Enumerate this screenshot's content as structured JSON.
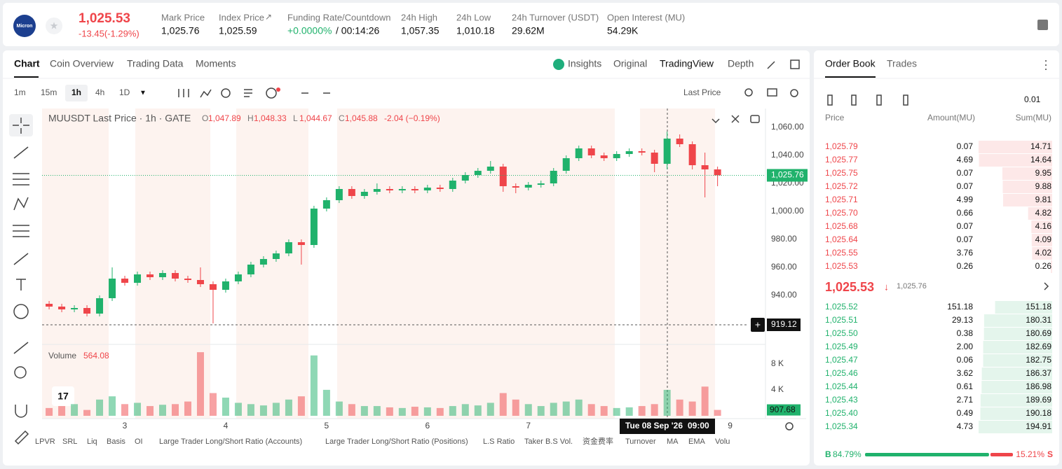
{
  "header": {
    "logo": "Micron",
    "price": "1,025.53",
    "change": "-13.45(-1.29%)",
    "stats": [
      {
        "label": "Mark Price",
        "value": "1,025.76"
      },
      {
        "label": "Index Price",
        "value": "1,025.59"
      },
      {
        "label": "Funding Rate/Countdown",
        "value": "+0.0000%",
        "extra": "/ 00:14:26"
      },
      {
        "label": "24h High",
        "value": "1,057.35"
      },
      {
        "label": "24h Low",
        "value": "1,010.18"
      },
      {
        "label": "24h Turnover (USDT)",
        "value": "29.62M"
      },
      {
        "label": "Open Interest (MU)",
        "value": "54.29K"
      }
    ]
  },
  "chart_tabs": [
    "Chart",
    "Coin Overview",
    "Trading Data",
    "Moments"
  ],
  "view_tabs": [
    "Insights",
    "Original",
    "TradingView",
    "Depth"
  ],
  "intervals": [
    "1m",
    "15m",
    "1h",
    "4h",
    "1D"
  ],
  "price_type": "Last Price",
  "legend": {
    "ohlc": [
      {
        "k": "O",
        "v": "1,047.89"
      },
      {
        "k": "H",
        "v": "1,048.33"
      },
      {
        "k": "L",
        "v": "1,044.67"
      },
      {
        "k": "C",
        "v": "1,045.88"
      }
    ],
    "change": "-2.04 (−0.19%)"
  },
  "volume_legend": {
    "label": "Volume",
    "value": "564.08"
  },
  "tags": {
    "last_price": "1,025.76",
    "cross_price": "919.12",
    "last_volume": "907.68",
    "cross_date": "Tue 08 Sep '26",
    "cross_time": "09:00"
  },
  "indicators": [
    "LPVR",
    "SRL",
    "Liq",
    "Basis",
    "OI",
    "Large Trader Long/Short Ratio (Accounts)",
    "Large Trader Long/Short Ratio (Positions)",
    "L.S Ratio",
    "Taker B.S Vol.",
    "资金费率",
    "Turnover",
    "MA",
    "EMA",
    "Volu"
  ],
  "chart_data": {
    "type": "candlestick",
    "title": "MUUSDT Last Price · 1h · GATE",
    "up_color": "#20b26c",
    "down_color": "#ef454a",
    "x": [
      2.25,
      2.375,
      2.5,
      2.625,
      2.75,
      2.875,
      3,
      3.125,
      3.25,
      3.375,
      3.5,
      3.625,
      3.75,
      3.875,
      4,
      4.125,
      4.25,
      4.375,
      4.5,
      4.625,
      4.75,
      4.875,
      5,
      5.125,
      5.25,
      5.375,
      5.5,
      5.625,
      5.75,
      5.875,
      6,
      6.125,
      6.25,
      6.375,
      6.5,
      6.625,
      6.75,
      6.875,
      7,
      7.125,
      7.25,
      7.375,
      7.5,
      7.625,
      7.75,
      7.875,
      8,
      8.125,
      8.25,
      8.375,
      8.5,
      8.625,
      8.75,
      8.875
    ],
    "open": [
      934,
      932,
      930,
      931,
      927,
      938,
      952,
      949,
      955,
      953,
      956,
      952,
      951,
      948,
      944,
      950,
      955,
      962,
      966,
      970,
      978,
      976,
      1002,
      1008,
      1016,
      1011,
      1014,
      1016,
      1015,
      1016,
      1015,
      1017,
      1016,
      1022,
      1026,
      1029,
      1032,
      1018,
      1017,
      1019,
      1020,
      1029,
      1038,
      1045,
      1040,
      1038,
      1041,
      1043,
      1042,
      1034,
      1052,
      1048,
      1033,
      1030
    ],
    "high": [
      936,
      934,
      933,
      933,
      940,
      960,
      954,
      957,
      957,
      958,
      958,
      954,
      960,
      950,
      952,
      957,
      964,
      968,
      972,
      980,
      980,
      1004,
      1010,
      1018,
      1018,
      1016,
      1020,
      1018,
      1018,
      1018,
      1019,
      1019,
      1024,
      1028,
      1031,
      1036,
      1034,
      1020,
      1021,
      1022,
      1031,
      1040,
      1047,
      1047,
      1042,
      1043,
      1045,
      1045,
      1044,
      1057,
      1055,
      1050,
      1042,
      1032
    ],
    "low": [
      930,
      928,
      928,
      925,
      925,
      936,
      947,
      947,
      951,
      951,
      950,
      949,
      946,
      920,
      942,
      948,
      953,
      960,
      964,
      968,
      962,
      974,
      1000,
      1006,
      1009,
      1009,
      1012,
      1013,
      1013,
      1013,
      1013,
      1014,
      1014,
      1020,
      1024,
      1027,
      1014,
      1013,
      1015,
      1017,
      1018,
      1027,
      1036,
      1038,
      1036,
      1036,
      1039,
      1040,
      1028,
      1030,
      1046,
      1030,
      1010,
      1018
    ],
    "close": [
      932,
      930,
      931,
      927,
      938,
      952,
      949,
      955,
      953,
      956,
      952,
      951,
      948,
      944,
      950,
      955,
      962,
      966,
      970,
      978,
      976,
      1002,
      1008,
      1016,
      1011,
      1014,
      1016,
      1015,
      1016,
      1015,
      1017,
      1016,
      1022,
      1026,
      1029,
      1032,
      1018,
      1017,
      1019,
      1020,
      1029,
      1038,
      1045,
      1040,
      1038,
      1041,
      1043,
      1042,
      1034,
      1052,
      1048,
      1033,
      1030,
      1025.76
    ],
    "volume": [
      1200,
      1500,
      1800,
      900,
      2500,
      3000,
      1800,
      2000,
      1500,
      1700,
      1800,
      2200,
      9800,
      3500,
      2800,
      2000,
      1800,
      1600,
      2000,
      2500,
      3000,
      9300,
      4000,
      2200,
      1800,
      1500,
      1500,
      1300,
      1200,
      1400,
      1300,
      1200,
      1500,
      1800,
      1600,
      2000,
      3500,
      2500,
      1800,
      1500,
      2000,
      2200,
      2500,
      1800,
      1500,
      1200,
      1300,
      1500,
      1800,
      4000,
      2500,
      2200,
      4500,
      907.68
    ],
    "xlim": [
      2.18,
      9.35
    ],
    "xticks": [
      3,
      4,
      5,
      6,
      7,
      9
    ],
    "ylim": [
      906.5,
      1073.5
    ],
    "yticks": [
      {
        "value": 940,
        "label": "940.00"
      },
      {
        "value": 960,
        "label": "960.00"
      },
      {
        "value": 980,
        "label": "980.00"
      },
      {
        "value": 1000,
        "label": "1,000.00"
      },
      {
        "value": 1020,
        "label": "1,020.00"
      },
      {
        "value": 1040,
        "label": "1,040.00"
      },
      {
        "value": 1060,
        "label": "1,060.00"
      }
    ],
    "volume_ylim": [
      0,
      11000
    ],
    "volume_yticks": [
      {
        "value": 4000,
        "label": "4 K"
      },
      {
        "value": 8000,
        "label": "8 K"
      }
    ]
  },
  "order_book": {
    "tabs": [
      "Order Book",
      "Trades"
    ],
    "precision": "0.01",
    "headers": [
      "Price",
      "Amount(MU)",
      "Sum(MU)"
    ],
    "asks": [
      [
        "1,025.79",
        "0.07",
        14.71
      ],
      [
        "1,025.77",
        "4.69",
        14.64
      ],
      [
        "1,025.75",
        "0.07",
        9.95
      ],
      [
        "1,025.72",
        "0.07",
        9.88
      ],
      [
        "1,025.71",
        "4.99",
        9.81
      ],
      [
        "1,025.70",
        "0.66",
        4.82
      ],
      [
        "1,025.68",
        "0.07",
        4.16
      ],
      [
        "1,025.64",
        "0.07",
        4.09
      ],
      [
        "1,025.55",
        "3.76",
        4.02
      ],
      [
        "1,025.53",
        "0.26",
        0.26
      ]
    ],
    "mid_price": "1,025.53",
    "mark": "1,025.76",
    "bids": [
      [
        "1,025.52",
        "151.18",
        151.18
      ],
      [
        "1,025.51",
        "29.13",
        180.31
      ],
      [
        "1,025.50",
        "0.38",
        180.69
      ],
      [
        "1,025.49",
        "2.00",
        182.69
      ],
      [
        "1,025.47",
        "0.06",
        182.75
      ],
      [
        "1,025.46",
        "3.62",
        186.37
      ],
      [
        "1,025.44",
        "0.61",
        186.98
      ],
      [
        "1,025.43",
        "2.71",
        189.69
      ],
      [
        "1,025.40",
        "0.49",
        190.18
      ],
      [
        "1,025.34",
        "4.73",
        194.91
      ]
    ],
    "buy_label": "B",
    "buy": {
      "value": 84.79,
      "label": "84.79%"
    },
    "sell": {
      "value": 15.21,
      "label": "15.21%"
    },
    "sell_label": "S"
  }
}
